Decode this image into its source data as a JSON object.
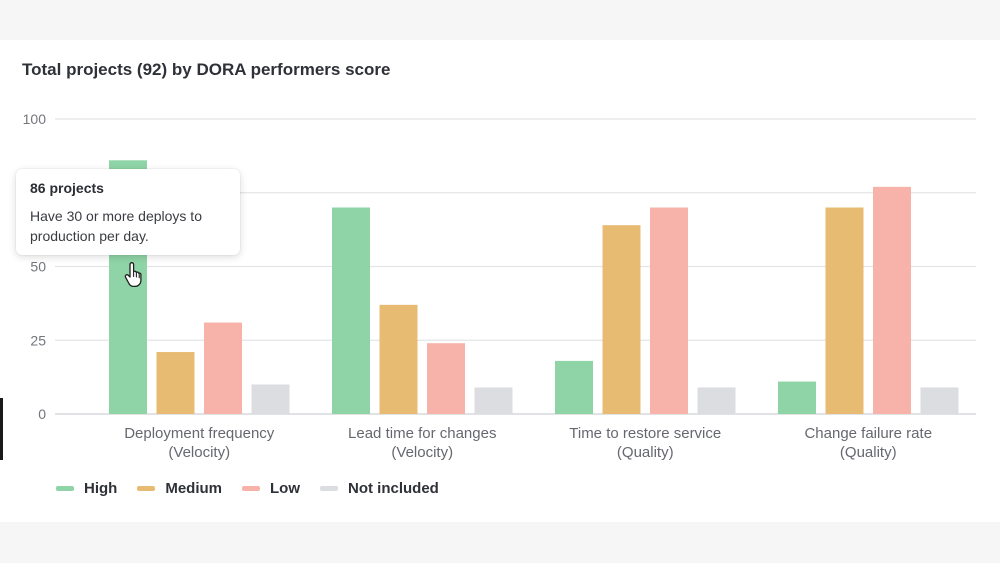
{
  "chart_data": {
    "type": "bar",
    "title": "Total projects (92) by DORA performers score",
    "categories": [
      [
        "Deployment frequency",
        "(Velocity)"
      ],
      [
        "Lead time for changes",
        "(Velocity)"
      ],
      [
        "Time to restore service",
        "(Quality)"
      ],
      [
        "Change failure rate",
        "(Quality)"
      ]
    ],
    "series": [
      {
        "name": "High",
        "color": "#8fd4a6",
        "values": [
          86,
          70,
          18,
          11
        ]
      },
      {
        "name": "Medium",
        "color": "#e8bb72",
        "values": [
          21,
          37,
          64,
          70
        ]
      },
      {
        "name": "Low",
        "color": "#f7b3aa",
        "values": [
          31,
          24,
          70,
          77
        ]
      },
      {
        "name": "Not included",
        "color": "#dcdde0",
        "values": [
          10,
          9,
          9,
          9
        ]
      }
    ],
    "ylim": [
      0,
      100
    ],
    "yticks": [
      0,
      25,
      50,
      100
    ],
    "grid": true,
    "legend": "bottom-left"
  },
  "tooltip": {
    "title": "86 projects",
    "text": "Have 30 or more deploys to production per day."
  }
}
